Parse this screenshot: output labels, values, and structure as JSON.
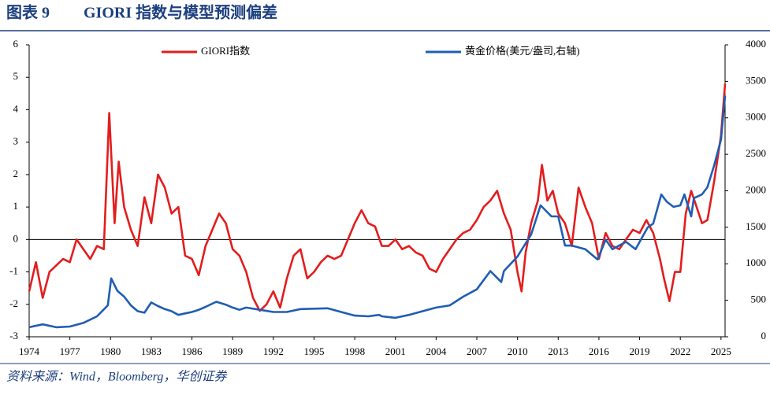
{
  "chart_data": {
    "type": "line",
    "title": "图表 9",
    "subtitle": "GIORI 指数与模型预测偏差",
    "source": "资料来源：Wind，Bloomberg，华创证券",
    "xlim": [
      1974,
      2025.3
    ],
    "xticks": [
      1974,
      1977,
      1980,
      1983,
      1986,
      1989,
      1992,
      1995,
      1998,
      2001,
      2004,
      2007,
      2010,
      2013,
      2016,
      2019,
      2022,
      2025
    ],
    "ylim": [
      -3,
      6
    ],
    "yticks": [
      -3,
      -2,
      -1,
      0,
      1,
      2,
      3,
      4,
      5,
      6
    ],
    "y2lim": [
      0,
      4000
    ],
    "y2ticks": [
      0,
      500,
      1000,
      1500,
      2000,
      2500,
      3000,
      3500,
      4000
    ],
    "series": [
      {
        "name": "GIORI指数",
        "color": "#e31d1d",
        "x": [
          1974.0,
          1974.5,
          1975.0,
          1975.5,
          1976.0,
          1976.5,
          1977.0,
          1977.5,
          1978.0,
          1978.5,
          1979.0,
          1979.5,
          1979.9,
          1980.3,
          1980.6,
          1981.0,
          1981.5,
          1982.0,
          1982.5,
          1983.0,
          1983.5,
          1984.0,
          1984.5,
          1985.0,
          1985.5,
          1986.0,
          1986.5,
          1987.0,
          1987.5,
          1988.0,
          1988.5,
          1989.0,
          1989.5,
          1990.0,
          1990.5,
          1991.0,
          1991.5,
          1992.0,
          1992.5,
          1993.0,
          1993.5,
          1994.0,
          1994.5,
          1995.0,
          1995.5,
          1996.0,
          1996.5,
          1997.0,
          1997.5,
          1998.0,
          1998.5,
          1999.0,
          1999.5,
          2000.0,
          2000.5,
          2001.0,
          2001.5,
          2002.0,
          2002.5,
          2003.0,
          2003.5,
          2004.0,
          2004.5,
          2005.0,
          2005.5,
          2006.0,
          2006.5,
          2007.0,
          2007.5,
          2008.0,
          2008.5,
          2009.0,
          2009.5,
          2010.0,
          2010.3,
          2010.6,
          2011.0,
          2011.5,
          2011.8,
          2012.2,
          2012.6,
          2013.0,
          2013.5,
          2014.0,
          2014.5,
          2015.0,
          2015.5,
          2016.0,
          2016.5,
          2017.0,
          2017.5,
          2018.0,
          2018.5,
          2019.0,
          2019.5,
          2020.0,
          2020.5,
          2020.8,
          2021.2,
          2021.6,
          2022.0,
          2022.4,
          2022.8,
          2023.2,
          2023.6,
          2024.0,
          2024.5,
          2025.0,
          2025.3
        ],
        "values": [
          -1.6,
          -0.7,
          -1.8,
          -1.0,
          -0.8,
          -0.6,
          -0.7,
          0.0,
          -0.3,
          -0.6,
          -0.2,
          -0.3,
          3.9,
          0.5,
          2.4,
          1.0,
          0.3,
          -0.2,
          1.3,
          0.5,
          2.0,
          1.6,
          0.8,
          1.0,
          -0.5,
          -0.6,
          -1.1,
          -0.2,
          0.3,
          0.8,
          0.5,
          -0.3,
          -0.5,
          -1.0,
          -1.8,
          -2.2,
          -2.0,
          -1.6,
          -2.1,
          -1.2,
          -0.5,
          -0.3,
          -1.2,
          -1.0,
          -0.7,
          -0.5,
          -0.6,
          -0.5,
          0.0,
          0.5,
          0.9,
          0.5,
          0.4,
          -0.2,
          -0.2,
          0.0,
          -0.3,
          -0.2,
          -0.4,
          -0.5,
          -0.9,
          -1.0,
          -0.6,
          -0.3,
          0.0,
          0.2,
          0.3,
          0.6,
          1.0,
          1.2,
          1.5,
          0.8,
          0.3,
          -1.0,
          -1.6,
          -0.4,
          0.5,
          1.2,
          2.3,
          1.2,
          1.5,
          0.8,
          0.5,
          -0.2,
          1.6,
          1.0,
          0.5,
          -0.6,
          0.2,
          -0.2,
          -0.3,
          0.0,
          0.3,
          0.2,
          0.6,
          0.2,
          -0.6,
          -1.2,
          -1.9,
          -1.0,
          -1.0,
          0.8,
          1.5,
          1.0,
          0.5,
          0.6,
          1.8,
          3.2,
          4.8
        ]
      },
      {
        "name": "黄金价格(美元/盎司,右轴)",
        "color": "#1f5db4",
        "axis": "y2",
        "x": [
          1974,
          1975,
          1976,
          1977,
          1978,
          1979,
          1979.8,
          1980.05,
          1980.5,
          1981,
          1981.5,
          1982,
          1982.5,
          1983,
          1983.5,
          1984,
          1984.5,
          1985,
          1985.5,
          1986,
          1986.5,
          1987,
          1987.8,
          1988.5,
          1989,
          1989.5,
          1990,
          1991,
          1992,
          1993,
          1994,
          1995,
          1996,
          1997,
          1998,
          1999,
          1999.8,
          2000,
          2001,
          2002,
          2003,
          2004,
          2005,
          2006,
          2007,
          2008,
          2008.8,
          2009,
          2010,
          2011,
          2011.7,
          2012.5,
          2013,
          2013.5,
          2014,
          2015,
          2015.9,
          2016.5,
          2017,
          2018,
          2018.7,
          2019,
          2019.6,
          2020,
          2020.6,
          2021,
          2021.5,
          2022,
          2022.3,
          2022.8,
          2023,
          2023.6,
          2024,
          2024.5,
          2025,
          2025.3
        ],
        "values": [
          130,
          170,
          130,
          140,
          190,
          280,
          430,
          800,
          630,
          550,
          430,
          350,
          330,
          470,
          420,
          380,
          350,
          300,
          320,
          340,
          370,
          410,
          480,
          440,
          400,
          370,
          400,
          370,
          340,
          340,
          380,
          385,
          390,
          340,
          290,
          280,
          300,
          280,
          260,
          300,
          350,
          400,
          430,
          550,
          650,
          900,
          750,
          900,
          1100,
          1400,
          1800,
          1650,
          1650,
          1250,
          1250,
          1200,
          1060,
          1330,
          1200,
          1300,
          1200,
          1300,
          1500,
          1550,
          1950,
          1850,
          1780,
          1800,
          1950,
          1650,
          1900,
          1950,
          2050,
          2350,
          2700,
          3300
        ]
      }
    ]
  }
}
